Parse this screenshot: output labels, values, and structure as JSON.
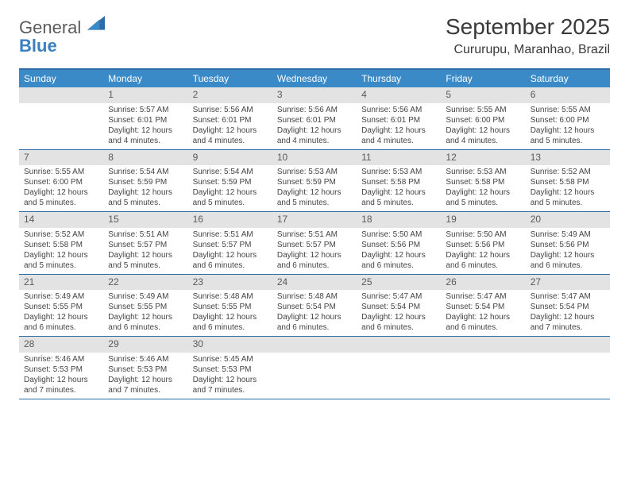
{
  "logo": {
    "line1": "General",
    "line2": "Blue"
  },
  "header": {
    "month_title": "September 2025",
    "location": "Cururupu, Maranhao, Brazil"
  },
  "colors": {
    "header_bar": "#3a8ac8",
    "header_border": "#2e6ca8",
    "daynum_bg": "#e3e3e3",
    "text": "#333333",
    "logo_gray": "#5b5b5b",
    "logo_blue": "#3a7fbf"
  },
  "weekdays": [
    "Sunday",
    "Monday",
    "Tuesday",
    "Wednesday",
    "Thursday",
    "Friday",
    "Saturday"
  ],
  "weeks": [
    [
      {
        "n": ""
      },
      {
        "n": "1",
        "sr": "Sunrise: 5:57 AM",
        "ss": "Sunset: 6:01 PM",
        "d1": "Daylight: 12 hours",
        "d2": "and 4 minutes."
      },
      {
        "n": "2",
        "sr": "Sunrise: 5:56 AM",
        "ss": "Sunset: 6:01 PM",
        "d1": "Daylight: 12 hours",
        "d2": "and 4 minutes."
      },
      {
        "n": "3",
        "sr": "Sunrise: 5:56 AM",
        "ss": "Sunset: 6:01 PM",
        "d1": "Daylight: 12 hours",
        "d2": "and 4 minutes."
      },
      {
        "n": "4",
        "sr": "Sunrise: 5:56 AM",
        "ss": "Sunset: 6:01 PM",
        "d1": "Daylight: 12 hours",
        "d2": "and 4 minutes."
      },
      {
        "n": "5",
        "sr": "Sunrise: 5:55 AM",
        "ss": "Sunset: 6:00 PM",
        "d1": "Daylight: 12 hours",
        "d2": "and 4 minutes."
      },
      {
        "n": "6",
        "sr": "Sunrise: 5:55 AM",
        "ss": "Sunset: 6:00 PM",
        "d1": "Daylight: 12 hours",
        "d2": "and 5 minutes."
      }
    ],
    [
      {
        "n": "7",
        "sr": "Sunrise: 5:55 AM",
        "ss": "Sunset: 6:00 PM",
        "d1": "Daylight: 12 hours",
        "d2": "and 5 minutes."
      },
      {
        "n": "8",
        "sr": "Sunrise: 5:54 AM",
        "ss": "Sunset: 5:59 PM",
        "d1": "Daylight: 12 hours",
        "d2": "and 5 minutes."
      },
      {
        "n": "9",
        "sr": "Sunrise: 5:54 AM",
        "ss": "Sunset: 5:59 PM",
        "d1": "Daylight: 12 hours",
        "d2": "and 5 minutes."
      },
      {
        "n": "10",
        "sr": "Sunrise: 5:53 AM",
        "ss": "Sunset: 5:59 PM",
        "d1": "Daylight: 12 hours",
        "d2": "and 5 minutes."
      },
      {
        "n": "11",
        "sr": "Sunrise: 5:53 AM",
        "ss": "Sunset: 5:58 PM",
        "d1": "Daylight: 12 hours",
        "d2": "and 5 minutes."
      },
      {
        "n": "12",
        "sr": "Sunrise: 5:53 AM",
        "ss": "Sunset: 5:58 PM",
        "d1": "Daylight: 12 hours",
        "d2": "and 5 minutes."
      },
      {
        "n": "13",
        "sr": "Sunrise: 5:52 AM",
        "ss": "Sunset: 5:58 PM",
        "d1": "Daylight: 12 hours",
        "d2": "and 5 minutes."
      }
    ],
    [
      {
        "n": "14",
        "sr": "Sunrise: 5:52 AM",
        "ss": "Sunset: 5:58 PM",
        "d1": "Daylight: 12 hours",
        "d2": "and 5 minutes."
      },
      {
        "n": "15",
        "sr": "Sunrise: 5:51 AM",
        "ss": "Sunset: 5:57 PM",
        "d1": "Daylight: 12 hours",
        "d2": "and 5 minutes."
      },
      {
        "n": "16",
        "sr": "Sunrise: 5:51 AM",
        "ss": "Sunset: 5:57 PM",
        "d1": "Daylight: 12 hours",
        "d2": "and 6 minutes."
      },
      {
        "n": "17",
        "sr": "Sunrise: 5:51 AM",
        "ss": "Sunset: 5:57 PM",
        "d1": "Daylight: 12 hours",
        "d2": "and 6 minutes."
      },
      {
        "n": "18",
        "sr": "Sunrise: 5:50 AM",
        "ss": "Sunset: 5:56 PM",
        "d1": "Daylight: 12 hours",
        "d2": "and 6 minutes."
      },
      {
        "n": "19",
        "sr": "Sunrise: 5:50 AM",
        "ss": "Sunset: 5:56 PM",
        "d1": "Daylight: 12 hours",
        "d2": "and 6 minutes."
      },
      {
        "n": "20",
        "sr": "Sunrise: 5:49 AM",
        "ss": "Sunset: 5:56 PM",
        "d1": "Daylight: 12 hours",
        "d2": "and 6 minutes."
      }
    ],
    [
      {
        "n": "21",
        "sr": "Sunrise: 5:49 AM",
        "ss": "Sunset: 5:55 PM",
        "d1": "Daylight: 12 hours",
        "d2": "and 6 minutes."
      },
      {
        "n": "22",
        "sr": "Sunrise: 5:49 AM",
        "ss": "Sunset: 5:55 PM",
        "d1": "Daylight: 12 hours",
        "d2": "and 6 minutes."
      },
      {
        "n": "23",
        "sr": "Sunrise: 5:48 AM",
        "ss": "Sunset: 5:55 PM",
        "d1": "Daylight: 12 hours",
        "d2": "and 6 minutes."
      },
      {
        "n": "24",
        "sr": "Sunrise: 5:48 AM",
        "ss": "Sunset: 5:54 PM",
        "d1": "Daylight: 12 hours",
        "d2": "and 6 minutes."
      },
      {
        "n": "25",
        "sr": "Sunrise: 5:47 AM",
        "ss": "Sunset: 5:54 PM",
        "d1": "Daylight: 12 hours",
        "d2": "and 6 minutes."
      },
      {
        "n": "26",
        "sr": "Sunrise: 5:47 AM",
        "ss": "Sunset: 5:54 PM",
        "d1": "Daylight: 12 hours",
        "d2": "and 6 minutes."
      },
      {
        "n": "27",
        "sr": "Sunrise: 5:47 AM",
        "ss": "Sunset: 5:54 PM",
        "d1": "Daylight: 12 hours",
        "d2": "and 7 minutes."
      }
    ],
    [
      {
        "n": "28",
        "sr": "Sunrise: 5:46 AM",
        "ss": "Sunset: 5:53 PM",
        "d1": "Daylight: 12 hours",
        "d2": "and 7 minutes."
      },
      {
        "n": "29",
        "sr": "Sunrise: 5:46 AM",
        "ss": "Sunset: 5:53 PM",
        "d1": "Daylight: 12 hours",
        "d2": "and 7 minutes."
      },
      {
        "n": "30",
        "sr": "Sunrise: 5:45 AM",
        "ss": "Sunset: 5:53 PM",
        "d1": "Daylight: 12 hours",
        "d2": "and 7 minutes."
      },
      {
        "n": ""
      },
      {
        "n": ""
      },
      {
        "n": ""
      },
      {
        "n": ""
      }
    ]
  ]
}
